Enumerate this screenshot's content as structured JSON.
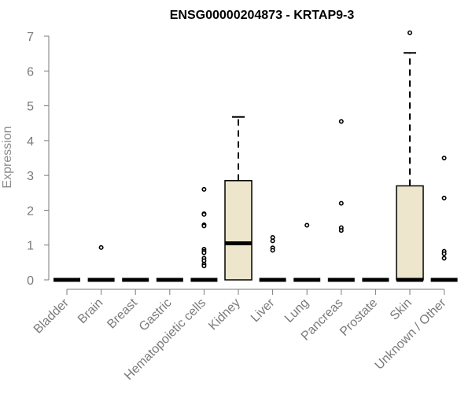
{
  "chart_data": {
    "type": "box",
    "title": "ENSG00000204873 - KRTAP9-3",
    "xlabel": "",
    "ylabel": "Expression",
    "ylim": [
      0,
      7
    ],
    "yticks": [
      0,
      1,
      2,
      3,
      4,
      5,
      6,
      7
    ],
    "grid": false,
    "legend": "none",
    "colors": {
      "box_fill": "#ede6cc",
      "stroke": "#000000",
      "axis": "#7a7a7a",
      "ylabel": "#8c8c8c"
    },
    "categories": [
      "Bladder",
      "Brain",
      "Breast",
      "Gastric",
      "Hematopoietic cells",
      "Kidney",
      "Liver",
      "Lung",
      "Pancreas",
      "Prostate",
      "Skin",
      "Unknown / Other"
    ],
    "boxes": [
      {
        "category": "Bladder",
        "min": 0,
        "q1": 0,
        "median": 0,
        "q3": 0,
        "max": 0,
        "outliers": []
      },
      {
        "category": "Brain",
        "min": 0,
        "q1": 0,
        "median": 0,
        "q3": 0,
        "max": 0,
        "outliers": [
          0.93
        ]
      },
      {
        "category": "Breast",
        "min": 0,
        "q1": 0,
        "median": 0,
        "q3": 0,
        "max": 0,
        "outliers": []
      },
      {
        "category": "Gastric",
        "min": 0,
        "q1": 0,
        "median": 0,
        "q3": 0,
        "max": 0,
        "outliers": []
      },
      {
        "category": "Hematopoietic cells",
        "min": 0,
        "q1": 0,
        "median": 0,
        "q3": 0,
        "max": 0,
        "outliers": [
          2.6,
          1.9,
          1.88,
          1.58,
          1.55,
          0.88,
          0.82,
          0.78,
          0.62,
          0.55,
          0.45,
          0.4
        ]
      },
      {
        "category": "Kidney",
        "min": 0,
        "q1": 0,
        "median": 1.05,
        "q3": 2.85,
        "max": 4.68,
        "outliers": []
      },
      {
        "category": "Liver",
        "min": 0,
        "q1": 0,
        "median": 0,
        "q3": 0,
        "max": 0,
        "outliers": [
          1.22,
          1.12,
          0.92,
          0.85
        ]
      },
      {
        "category": "Lung",
        "min": 0,
        "q1": 0,
        "median": 0,
        "q3": 0,
        "max": 0,
        "outliers": [
          1.57
        ]
      },
      {
        "category": "Pancreas",
        "min": 0,
        "q1": 0,
        "median": 0,
        "q3": 0,
        "max": 0,
        "outliers": [
          4.55,
          2.2,
          1.5,
          1.42
        ]
      },
      {
        "category": "Prostate",
        "min": 0,
        "q1": 0,
        "median": 0,
        "q3": 0,
        "max": 0,
        "outliers": []
      },
      {
        "category": "Skin",
        "min": 0,
        "q1": 0,
        "median": 0,
        "q3": 2.7,
        "max": 6.52,
        "outliers": [
          7.1
        ]
      },
      {
        "category": "Unknown / Other",
        "min": 0,
        "q1": 0,
        "median": 0,
        "q3": 0,
        "max": 0,
        "outliers": [
          3.5,
          2.35,
          0.82,
          0.75,
          0.62
        ]
      }
    ]
  }
}
